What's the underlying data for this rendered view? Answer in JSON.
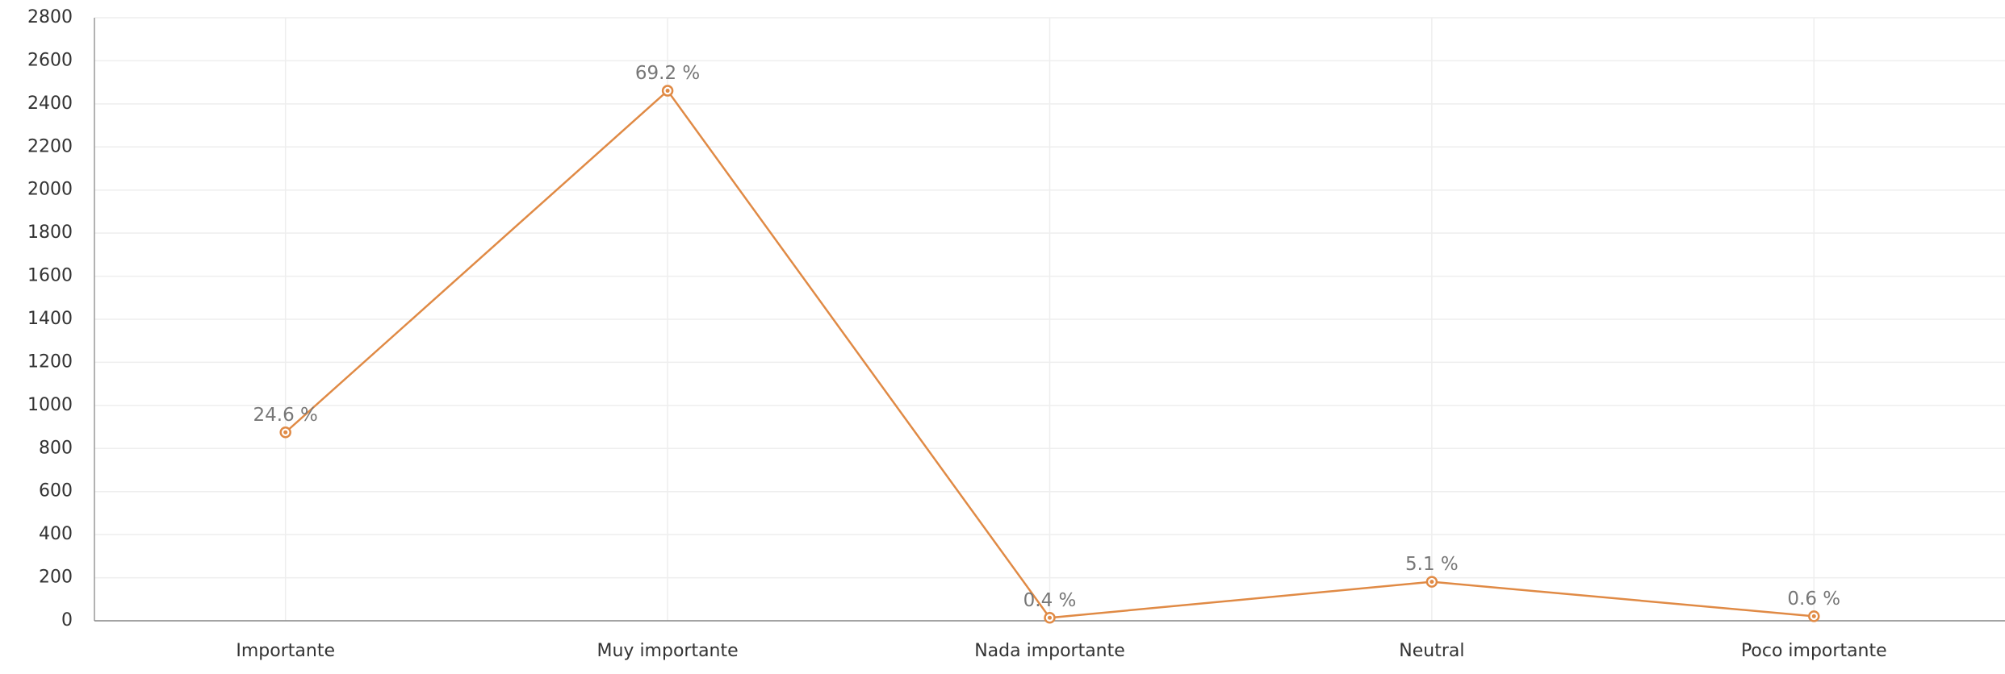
{
  "chart_data": {
    "type": "line",
    "categories": [
      "Importante",
      "Muy importante",
      "Nada importante",
      "Neutral",
      "Poco importante"
    ],
    "values": [
      875,
      2461,
      14,
      181,
      21
    ],
    "percent_labels": [
      "24.6 %",
      "69.2 %",
      "0.4 %",
      "5.1 %",
      "0.6 %"
    ],
    "color": "#e08a45",
    "ylim": [
      0,
      2800
    ],
    "yticks": [
      0,
      200,
      400,
      600,
      800,
      1000,
      1200,
      1400,
      1600,
      1800,
      2000,
      2200,
      2400,
      2600,
      2800
    ],
    "grid": true
  }
}
